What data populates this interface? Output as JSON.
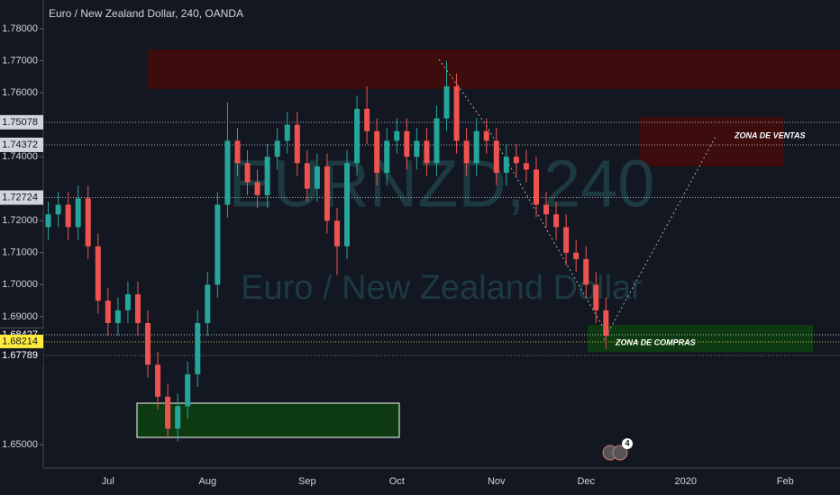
{
  "chart_data": {
    "type": "candlestick",
    "title": "Euro / New Zealand Dollar, 240, OANDA",
    "watermark": "EURNZD, 240",
    "watermark_subtitle": "Euro / New Zealand Dollar",
    "annotations": [
      "ZONA DE VENTAS",
      "ZONA DE COMPRAS"
    ],
    "badge": "4",
    "up_color": "#26a69a",
    "down_color": "#ef5350",
    "categories": [
      null,
      null,
      null,
      null,
      null,
      null,
      "Jul",
      null,
      null,
      null,
      null,
      null,
      null,
      null,
      null,
      null,
      "Aug",
      null,
      null,
      null,
      null,
      null,
      null,
      null,
      null,
      null,
      "Sep",
      null,
      null,
      null,
      null,
      null,
      null,
      null,
      null,
      "Oct",
      null,
      null,
      null,
      null,
      null,
      null,
      null,
      null,
      null,
      "Nov",
      null,
      null,
      null,
      null,
      null,
      null,
      null,
      null,
      "Dec",
      null,
      null,
      null,
      null,
      null,
      null,
      null,
      null,
      null,
      "2020",
      null,
      null,
      null,
      null,
      null,
      null,
      null,
      null,
      null,
      "Feb",
      null,
      null,
      null,
      null,
      null
    ],
    "open": [
      1.718,
      1.722,
      1.725,
      1.718,
      1.727,
      1.712,
      1.695,
      1.688,
      1.692,
      1.697,
      1.688,
      1.675,
      1.665,
      1.655,
      1.662,
      1.672,
      1.688,
      1.7,
      1.725,
      1.745,
      1.738,
      1.732,
      1.728,
      1.74,
      1.745,
      1.75,
      1.738,
      1.73,
      1.737,
      1.72,
      1.712,
      1.738,
      1.755,
      1.748,
      1.735,
      1.745,
      1.748,
      1.74,
      1.745,
      1.738,
      1.752,
      1.762,
      1.745,
      1.738,
      1.748,
      1.745,
      1.735,
      1.74,
      1.738,
      1.736,
      1.725,
      1.722,
      1.718,
      1.71,
      1.708,
      1.7,
      1.692,
      null,
      null,
      null,
      null,
      null,
      null,
      null,
      null,
      null,
      null,
      null,
      null,
      null,
      null,
      null,
      null,
      null,
      null,
      null,
      null,
      null,
      null,
      null
    ],
    "high": [
      1.726,
      1.729,
      1.729,
      1.731,
      1.731,
      1.716,
      1.699,
      1.696,
      1.701,
      1.701,
      1.692,
      1.679,
      1.669,
      1.666,
      1.676,
      1.692,
      1.704,
      1.729,
      1.757,
      1.749,
      1.742,
      1.736,
      1.744,
      1.749,
      1.754,
      1.754,
      1.742,
      1.741,
      1.741,
      1.724,
      1.742,
      1.759,
      1.762,
      1.752,
      1.749,
      1.752,
      1.752,
      1.749,
      1.749,
      1.756,
      1.77,
      1.766,
      1.749,
      1.752,
      1.752,
      1.749,
      1.744,
      1.744,
      1.742,
      1.74,
      1.729,
      1.726,
      1.722,
      1.714,
      1.712,
      1.704,
      1.696,
      null,
      null,
      null,
      null,
      null,
      null,
      null,
      null,
      null,
      null,
      null,
      null,
      null,
      null,
      null,
      null,
      null,
      null,
      null,
      null,
      null,
      null,
      null
    ],
    "low": [
      1.714,
      1.718,
      1.714,
      1.714,
      1.708,
      1.691,
      1.684,
      1.684,
      1.688,
      1.684,
      1.671,
      1.661,
      1.652,
      1.651,
      1.658,
      1.668,
      1.684,
      1.696,
      1.721,
      1.734,
      1.728,
      1.724,
      1.724,
      1.736,
      1.741,
      1.734,
      1.726,
      1.726,
      1.716,
      1.703,
      1.708,
      1.734,
      1.744,
      1.731,
      1.731,
      1.741,
      1.736,
      1.736,
      1.734,
      1.734,
      1.748,
      1.741,
      1.734,
      1.734,
      1.741,
      1.731,
      1.731,
      1.734,
      1.732,
      1.721,
      1.718,
      1.714,
      1.706,
      1.704,
      1.696,
      1.688,
      1.68,
      null,
      null,
      null,
      null,
      null,
      null,
      null,
      null,
      null,
      null,
      null,
      null,
      null,
      null,
      null,
      null,
      null,
      null,
      null,
      null,
      null,
      null,
      null
    ],
    "close": [
      1.722,
      1.725,
      1.718,
      1.727,
      1.712,
      1.695,
      1.688,
      1.692,
      1.697,
      1.688,
      1.675,
      1.665,
      1.655,
      1.662,
      1.672,
      1.688,
      1.7,
      1.725,
      1.745,
      1.738,
      1.732,
      1.728,
      1.74,
      1.745,
      1.75,
      1.738,
      1.73,
      1.737,
      1.72,
      1.712,
      1.738,
      1.755,
      1.748,
      1.735,
      1.745,
      1.748,
      1.74,
      1.745,
      1.738,
      1.752,
      1.762,
      1.745,
      1.738,
      1.748,
      1.745,
      1.735,
      1.74,
      1.738,
      1.736,
      1.725,
      1.722,
      1.718,
      1.71,
      1.708,
      1.7,
      1.692,
      1.684,
      null,
      null,
      null,
      null,
      null,
      null,
      null,
      null,
      null,
      null,
      null,
      null,
      null,
      null,
      null,
      null,
      null,
      null,
      null,
      null,
      null,
      null,
      null
    ],
    "ylim": [
      1.6427,
      1.789
    ],
    "yticks": [
      {
        "value": 1.78,
        "label": "1.78000"
      },
      {
        "value": 1.77,
        "label": "1.77000"
      },
      {
        "value": 1.76,
        "label": "1.76000"
      },
      {
        "value": 1.74,
        "label": "1.74000"
      },
      {
        "value": 1.72,
        "label": "1.72000"
      },
      {
        "value": 1.71,
        "label": "1.71000"
      },
      {
        "value": 1.7,
        "label": "1.70000"
      },
      {
        "value": 1.69,
        "label": "1.69000"
      },
      {
        "value": 1.65,
        "label": "1.65000"
      }
    ],
    "price_levels": [
      {
        "value": 1.75078,
        "label": "1.75078",
        "color": "#d1d4dc",
        "text_color": "#131722"
      },
      {
        "value": 1.74372,
        "label": "1.74372",
        "color": "#d1d4dc",
        "text_color": "#131722"
      },
      {
        "value": 1.72724,
        "label": "1.72724",
        "color": "#d1d4dc",
        "text_color": "#131722"
      },
      {
        "value": 1.68436,
        "label": "1.68436",
        "color": "#e0e3eb",
        "text_color": "#131722"
      },
      {
        "value": 1.68427,
        "label": "1.68427",
        "color": "#131722",
        "text_color": "#ffffff"
      },
      {
        "value": 1.68214,
        "label": "1.68214",
        "color": "#ffeb3b",
        "text_color": "#131722"
      },
      {
        "value": 1.67789,
        "label": "1.67789",
        "color": "#131722",
        "text_color": "#ffffff"
      }
    ]
  }
}
